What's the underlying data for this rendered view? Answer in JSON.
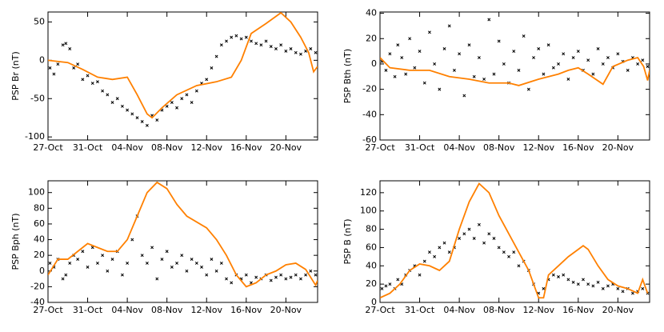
{
  "chart_data": [
    {
      "type": "scatter",
      "ylabel": "PSP Br (nT)",
      "xlim": [
        0,
        27.2
      ],
      "ylim": [
        -104,
        63
      ],
      "xticks": [
        {
          "value": 0,
          "label": "27-Oct"
        },
        {
          "value": 4,
          "label": "31-Oct"
        },
        {
          "value": 8,
          "label": "04-Nov"
        },
        {
          "value": 12,
          "label": "08-Nov"
        },
        {
          "value": 16,
          "label": "12-Nov"
        },
        {
          "value": 20,
          "label": "16-Nov"
        },
        {
          "value": 24,
          "label": "20-Nov"
        }
      ],
      "yticks": [
        -100,
        -50,
        0,
        50
      ],
      "series": [
        {
          "style": "points",
          "color": "#000000",
          "x": [
            0.2,
            0.6,
            1,
            1.5,
            1.8,
            2.2,
            2.6,
            3,
            3.5,
            4,
            4.5,
            5,
            5.5,
            6,
            6.5,
            7,
            7.5,
            8,
            8.5,
            9,
            9.5,
            10,
            10.5,
            11,
            11.5,
            12,
            12.5,
            13,
            13.5,
            14,
            14.5,
            15,
            15.5,
            16,
            16.5,
            17,
            17.5,
            18,
            18.5,
            19,
            19.5,
            20,
            20.5,
            21,
            21.5,
            22,
            22.5,
            23,
            23.5,
            24,
            24.5,
            25,
            25.5,
            26,
            26.5,
            27
          ],
          "values": [
            -10,
            -18,
            -5,
            20,
            22,
            15,
            -10,
            -5,
            -25,
            -20,
            -30,
            -28,
            -40,
            -45,
            -55,
            -50,
            -60,
            -65,
            -70,
            -75,
            -80,
            -85,
            -72,
            -78,
            -65,
            -60,
            -55,
            -62,
            -50,
            -45,
            -55,
            -40,
            -30,
            -25,
            -10,
            5,
            20,
            25,
            30,
            32,
            28,
            30,
            25,
            22,
            20,
            25,
            18,
            15,
            20,
            12,
            15,
            10,
            8,
            12,
            15,
            10
          ]
        },
        {
          "style": "line",
          "color": "#ff8000",
          "x": [
            0,
            2,
            3.5,
            5,
            6.5,
            8,
            9,
            10,
            10.5,
            11.5,
            13,
            15,
            17,
            18.5,
            19.5,
            20.5,
            22,
            23.5,
            24.5,
            25.5,
            26.3,
            26.8,
            27.2
          ],
          "values": [
            0,
            -3,
            -12,
            -22,
            -25,
            -22,
            -45,
            -70,
            -75,
            -62,
            -45,
            -33,
            -28,
            -22,
            0,
            35,
            48,
            62,
            50,
            30,
            10,
            -15,
            -8
          ]
        }
      ]
    },
    {
      "type": "scatter",
      "ylabel": "PSP Bth (nT)",
      "xlim": [
        0,
        27.2
      ],
      "ylim": [
        -60,
        41
      ],
      "xticks": [
        {
          "value": 0,
          "label": "27-Oct"
        },
        {
          "value": 4,
          "label": "31-Oct"
        },
        {
          "value": 8,
          "label": "04-Nov"
        },
        {
          "value": 12,
          "label": "08-Nov"
        },
        {
          "value": 16,
          "label": "12-Nov"
        },
        {
          "value": 20,
          "label": "16-Nov"
        },
        {
          "value": 24,
          "label": "20-Nov"
        }
      ],
      "yticks": [
        -60,
        -40,
        -20,
        0,
        20,
        40
      ],
      "series": [
        {
          "style": "points",
          "color": "#000000",
          "x": [
            0.2,
            0.6,
            1,
            1.5,
            1.8,
            2.2,
            2.6,
            3,
            3.5,
            4,
            4.5,
            5,
            5.5,
            6,
            6.5,
            7,
            7.5,
            8,
            8.5,
            9,
            9.5,
            10,
            10.5,
            11,
            11.5,
            12,
            12.5,
            13,
            13.5,
            14,
            14.5,
            15,
            15.5,
            16,
            16.5,
            17,
            17.5,
            18,
            18.5,
            19,
            19.5,
            20,
            20.5,
            21,
            21.5,
            22,
            22.5,
            23,
            23.5,
            24,
            24.5,
            25,
            25.5,
            26,
            26.5,
            27
          ],
          "values": [
            2,
            -5,
            8,
            -10,
            15,
            5,
            -8,
            20,
            -3,
            10,
            -15,
            25,
            0,
            -20,
            12,
            30,
            -5,
            8,
            -25,
            15,
            -10,
            5,
            -12,
            35,
            -8,
            18,
            0,
            -15,
            10,
            -5,
            22,
            -20,
            5,
            12,
            -8,
            15,
            -3,
            0,
            8,
            -12,
            5,
            10,
            -5,
            3,
            -8,
            12,
            0,
            5,
            -3,
            8,
            2,
            -5,
            5,
            0,
            3,
            -2
          ]
        },
        {
          "style": "line",
          "color": "#ff8000",
          "x": [
            0,
            1,
            3,
            5,
            7,
            9,
            11,
            13,
            14,
            16,
            18,
            19,
            20,
            21,
            22.5,
            23.5,
            25,
            26,
            26.6,
            27,
            27.2
          ],
          "values": [
            5,
            -3,
            -5,
            -5,
            -10,
            -12,
            -15,
            -15,
            -17,
            -12,
            -8,
            -5,
            -3,
            -8,
            -16,
            -2,
            3,
            5,
            -2,
            -13,
            -5
          ]
        }
      ]
    },
    {
      "type": "scatter",
      "ylabel": "PSP Bph (nT)",
      "xlim": [
        0,
        27.2
      ],
      "ylim": [
        -40,
        115
      ],
      "xticks": [
        {
          "value": 0,
          "label": "27-Oct"
        },
        {
          "value": 4,
          "label": "31-Oct"
        },
        {
          "value": 8,
          "label": "04-Nov"
        },
        {
          "value": 12,
          "label": "08-Nov"
        },
        {
          "value": 16,
          "label": "12-Nov"
        },
        {
          "value": 20,
          "label": "16-Nov"
        },
        {
          "value": 24,
          "label": "20-Nov"
        }
      ],
      "yticks": [
        -40,
        -20,
        0,
        20,
        40,
        60,
        80,
        100
      ],
      "series": [
        {
          "style": "points",
          "color": "#000000",
          "x": [
            0.2,
            0.6,
            1,
            1.5,
            1.8,
            2.2,
            2.6,
            3,
            3.5,
            4,
            4.5,
            5,
            5.5,
            6,
            6.5,
            7,
            7.5,
            8,
            8.5,
            9,
            9.5,
            10,
            10.5,
            11,
            11.5,
            12,
            12.5,
            13,
            13.5,
            14,
            14.5,
            15,
            15.5,
            16,
            16.5,
            17,
            17.5,
            18,
            18.5,
            19,
            19.5,
            20,
            20.5,
            21,
            21.5,
            22,
            22.5,
            23,
            23.5,
            24,
            24.5,
            25,
            25.5,
            26,
            26.5,
            27
          ],
          "values": [
            10,
            5,
            15,
            -10,
            -5,
            10,
            20,
            15,
            25,
            5,
            30,
            10,
            20,
            0,
            15,
            25,
            -5,
            10,
            40,
            70,
            20,
            10,
            30,
            -10,
            15,
            25,
            5,
            10,
            20,
            0,
            15,
            10,
            5,
            -5,
            15,
            0,
            10,
            -10,
            -15,
            -5,
            -10,
            -5,
            -15,
            -8,
            -10,
            -5,
            -12,
            -8,
            -5,
            -10,
            -8,
            -5,
            -10,
            -5,
            0,
            -5
          ]
        },
        {
          "style": "line",
          "color": "#ff8000",
          "x": [
            0,
            1,
            2,
            3,
            4,
            5,
            6,
            7,
            8,
            9,
            10,
            11,
            12,
            13,
            14,
            16,
            17,
            18,
            19,
            20,
            21,
            22,
            23,
            24,
            25,
            26,
            27,
            27.2
          ],
          "values": [
            -5,
            15,
            15,
            25,
            35,
            30,
            25,
            25,
            40,
            70,
            100,
            113,
            105,
            85,
            70,
            55,
            40,
            20,
            -5,
            -20,
            -15,
            -5,
            0,
            8,
            10,
            2,
            -18,
            -12
          ]
        }
      ]
    },
    {
      "type": "scatter",
      "ylabel": "PSP B (nT)",
      "xlim": [
        0,
        27.2
      ],
      "ylim": [
        0,
        133
      ],
      "xticks": [
        {
          "value": 0,
          "label": "27-Oct"
        },
        {
          "value": 4,
          "label": "31-Oct"
        },
        {
          "value": 8,
          "label": "04-Nov"
        },
        {
          "value": 12,
          "label": "08-Nov"
        },
        {
          "value": 16,
          "label": "12-Nov"
        },
        {
          "value": 20,
          "label": "16-Nov"
        },
        {
          "value": 24,
          "label": "20-Nov"
        }
      ],
      "yticks": [
        0,
        20,
        40,
        60,
        80,
        100,
        120
      ],
      "series": [
        {
          "style": "points",
          "color": "#000000",
          "x": [
            0.2,
            0.6,
            1,
            1.5,
            1.8,
            2.2,
            2.6,
            3,
            3.5,
            4,
            4.5,
            5,
            5.5,
            6,
            6.5,
            7,
            7.5,
            8,
            8.5,
            9,
            9.5,
            10,
            10.5,
            11,
            11.5,
            12,
            12.5,
            13,
            13.5,
            14,
            14.5,
            15,
            15.5,
            16,
            16.5,
            17,
            17.5,
            18,
            18.5,
            19,
            19.5,
            20,
            20.5,
            21,
            21.5,
            22,
            22.5,
            23,
            23.5,
            24,
            24.5,
            25,
            25.5,
            26,
            26.5,
            27
          ],
          "values": [
            15,
            18,
            20,
            15,
            25,
            20,
            30,
            35,
            40,
            30,
            45,
            55,
            50,
            60,
            65,
            55,
            60,
            70,
            75,
            80,
            70,
            85,
            65,
            75,
            70,
            60,
            55,
            50,
            55,
            40,
            45,
            35,
            20,
            10,
            15,
            25,
            30,
            28,
            30,
            25,
            22,
            20,
            25,
            20,
            18,
            22,
            15,
            18,
            20,
            15,
            12,
            15,
            10,
            12,
            15,
            10
          ]
        },
        {
          "style": "line",
          "color": "#ff8000",
          "x": [
            0,
            1,
            2,
            3,
            4,
            5,
            6,
            7,
            8,
            9,
            10,
            11,
            12,
            13,
            14,
            15,
            16,
            16.5,
            17,
            18,
            19,
            20,
            20.5,
            21,
            22,
            23,
            24,
            25,
            26,
            26.5,
            27
          ],
          "values": [
            5,
            10,
            20,
            35,
            42,
            40,
            35,
            45,
            80,
            110,
            130,
            120,
            95,
            75,
            55,
            35,
            5,
            5,
            30,
            40,
            50,
            58,
            62,
            58,
            40,
            25,
            18,
            15,
            10,
            25,
            10
          ]
        }
      ]
    }
  ]
}
